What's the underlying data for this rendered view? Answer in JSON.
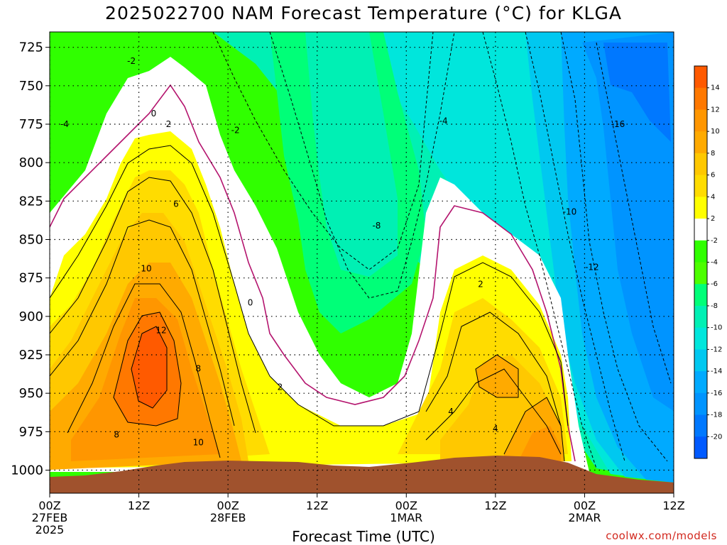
{
  "chart_data": {
    "type": "contour",
    "title": "2025022700 NAM Forecast Temperature (°C) for KLGA",
    "xlabel": "Forecast Time (UTC)",
    "ylabel": "",
    "credit": "coolwx.com/models",
    "y_axis": {
      "quantity": "pressure (hPa)",
      "range": [
        1015,
        715
      ],
      "ticks": [
        "725",
        "750",
        "775",
        "800",
        "825",
        "850",
        "875",
        "900",
        "925",
        "950",
        "975",
        "1000"
      ],
      "grid": true
    },
    "x_axis": {
      "quantity": "forecast hour",
      "range": [
        0,
        84
      ],
      "ticks": [
        {
          "hour": 0,
          "lines": [
            "00Z",
            "27FEB",
            "2025"
          ]
        },
        {
          "hour": 12,
          "lines": [
            "12Z"
          ]
        },
        {
          "hour": 24,
          "lines": [
            "00Z",
            "28FEB"
          ]
        },
        {
          "hour": 36,
          "lines": [
            "12Z"
          ]
        },
        {
          "hour": 48,
          "lines": [
            "00Z",
            "1MAR"
          ]
        },
        {
          "hour": 60,
          "lines": [
            "12Z"
          ]
        },
        {
          "hour": 72,
          "lines": [
            "00Z",
            "2MAR"
          ]
        },
        {
          "hour": 84,
          "lines": [
            "12Z"
          ]
        }
      ],
      "grid": true
    },
    "colorbar": {
      "levels": [
        "14",
        "12",
        "10",
        "8",
        "6",
        "4",
        "2",
        "-2",
        "-4",
        "-6",
        "-8",
        "-10",
        "-12",
        "-14",
        "-16",
        "-18",
        "-20"
      ],
      "colors": [
        "#ff5a00",
        "#ff7800",
        "#ff9600",
        "#ffaa00",
        "#ffc800",
        "#ffdc00",
        "#ffff00",
        "#ffffff",
        "#30ff00",
        "#4cff00",
        "#00ff78",
        "#00f0b4",
        "#00e6dc",
        "#00c8f0",
        "#00aaff",
        "#0094ff",
        "#0078ff",
        "#005aff"
      ]
    },
    "contour_labels": [
      {
        "text": "-2",
        "hour": 11,
        "p": 734
      },
      {
        "text": "-4",
        "hour": 2,
        "p": 775
      },
      {
        "text": "0",
        "hour": 14,
        "p": 768
      },
      {
        "text": "2",
        "hour": 16,
        "p": 775
      },
      {
        "text": "-2",
        "hour": 25,
        "p": 779
      },
      {
        "text": "-4",
        "hour": 53,
        "p": 773
      },
      {
        "text": "-16",
        "hour": 76.5,
        "p": 775
      },
      {
        "text": "-10",
        "hour": 70,
        "p": 832
      },
      {
        "text": "-8",
        "hour": 44,
        "p": 841
      },
      {
        "text": "6",
        "hour": 17,
        "p": 827
      },
      {
        "text": "10",
        "hour": 13,
        "p": 869
      },
      {
        "text": "-12",
        "hour": 73,
        "p": 868
      },
      {
        "text": "2",
        "hour": 58,
        "p": 879
      },
      {
        "text": "0",
        "hour": 27,
        "p": 891
      },
      {
        "text": "12",
        "hour": 15,
        "p": 909
      },
      {
        "text": "8",
        "hour": 20,
        "p": 934
      },
      {
        "text": "2",
        "hour": 31,
        "p": 946
      },
      {
        "text": "4",
        "hour": 54,
        "p": 962
      },
      {
        "text": "8",
        "hour": 9,
        "p": 977
      },
      {
        "text": "4",
        "hour": 60,
        "p": 973
      },
      {
        "text": "10",
        "hour": 20,
        "p": 982
      }
    ]
  },
  "colors": {
    "terrain": "#a0522d",
    "zero_isotherm": "#b4146e",
    "frame": "#000000",
    "credit": "#d2281e"
  }
}
